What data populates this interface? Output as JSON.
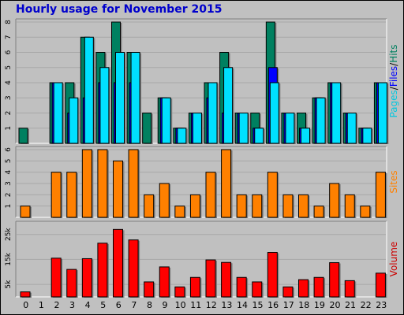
{
  "title": "Hourly usage for November 2015",
  "colors": {
    "background": "#c0c0c0",
    "hits": "#008060",
    "files": "#0000ff",
    "pages": "#00e0ff",
    "sites": "#ff8000",
    "volume": "#ff0000",
    "title": "#0000cc"
  },
  "chart_data": [
    {
      "type": "bar",
      "panel": "top",
      "categories": [
        "0",
        "1",
        "2",
        "3",
        "4",
        "5",
        "6",
        "7",
        "8",
        "9",
        "10",
        "11",
        "12",
        "13",
        "14",
        "15",
        "16",
        "17",
        "18",
        "19",
        "20",
        "21",
        "22",
        "23"
      ],
      "ylim": [
        0,
        8
      ],
      "y_ticks": [
        1,
        2,
        3,
        4,
        5,
        6,
        7,
        8
      ],
      "grid": true,
      "label_parts": [
        {
          "text": "Pages",
          "color": "#00c8e0"
        },
        {
          "text": "/",
          "color": "#000000"
        },
        {
          "text": "Files",
          "color": "#0000ff"
        },
        {
          "text": "/",
          "color": "#000000"
        },
        {
          "text": "Hits",
          "color": "#008060"
        }
      ],
      "series": [
        {
          "name": "Hits",
          "values": [
            1,
            0,
            4,
            4,
            7,
            6,
            8,
            6,
            2,
            3,
            1,
            2,
            4,
            6,
            2,
            2,
            8,
            2,
            2,
            3,
            4,
            2,
            1,
            4
          ]
        },
        {
          "name": "Files",
          "values": [
            0,
            0,
            4,
            2,
            3,
            4,
            4,
            4,
            0,
            3,
            1,
            2,
            3,
            2,
            2,
            1,
            5,
            2,
            1,
            3,
            4,
            2,
            1,
            4
          ]
        },
        {
          "name": "Pages",
          "values": [
            0,
            0,
            4,
            3,
            7,
            5,
            6,
            6,
            0,
            3,
            1,
            2,
            4,
            5,
            2,
            1,
            4,
            2,
            1,
            3,
            4,
            2,
            1,
            4
          ]
        }
      ]
    },
    {
      "type": "bar",
      "panel": "middle",
      "categories": [
        "0",
        "1",
        "2",
        "3",
        "4",
        "5",
        "6",
        "7",
        "8",
        "9",
        "10",
        "11",
        "12",
        "13",
        "14",
        "15",
        "16",
        "17",
        "18",
        "19",
        "20",
        "21",
        "22",
        "23"
      ],
      "ylim": [
        0,
        6
      ],
      "y_ticks": [
        1,
        2,
        3,
        4,
        5,
        6
      ],
      "grid": true,
      "label": "Sites",
      "series": [
        {
          "name": "Sites",
          "values": [
            1,
            0,
            4,
            4,
            6,
            6,
            5,
            6,
            2,
            3,
            1,
            2,
            4,
            6,
            2,
            2,
            4,
            2,
            2,
            1,
            3,
            2,
            1,
            4
          ]
        }
      ]
    },
    {
      "type": "bar",
      "panel": "bottom",
      "categories": [
        "0",
        "1",
        "2",
        "3",
        "4",
        "5",
        "6",
        "7",
        "8",
        "9",
        "10",
        "11",
        "12",
        "13",
        "14",
        "15",
        "16",
        "17",
        "18",
        "19",
        "20",
        "21",
        "22",
        "23"
      ],
      "ylim": [
        0,
        29000
      ],
      "y_ticks": [
        5000,
        15000,
        25000
      ],
      "y_tick_labels": [
        "5k",
        "15k",
        "25k"
      ],
      "grid": true,
      "label": "Volume",
      "series": [
        {
          "name": "Volume",
          "values": [
            2000,
            0,
            15500,
            11000,
            15300,
            21500,
            27000,
            22800,
            6000,
            12000,
            4000,
            7800,
            14800,
            13800,
            7800,
            6000,
            17800,
            4000,
            6900,
            7800,
            13700,
            6500,
            0,
            9500
          ]
        }
      ]
    }
  ]
}
